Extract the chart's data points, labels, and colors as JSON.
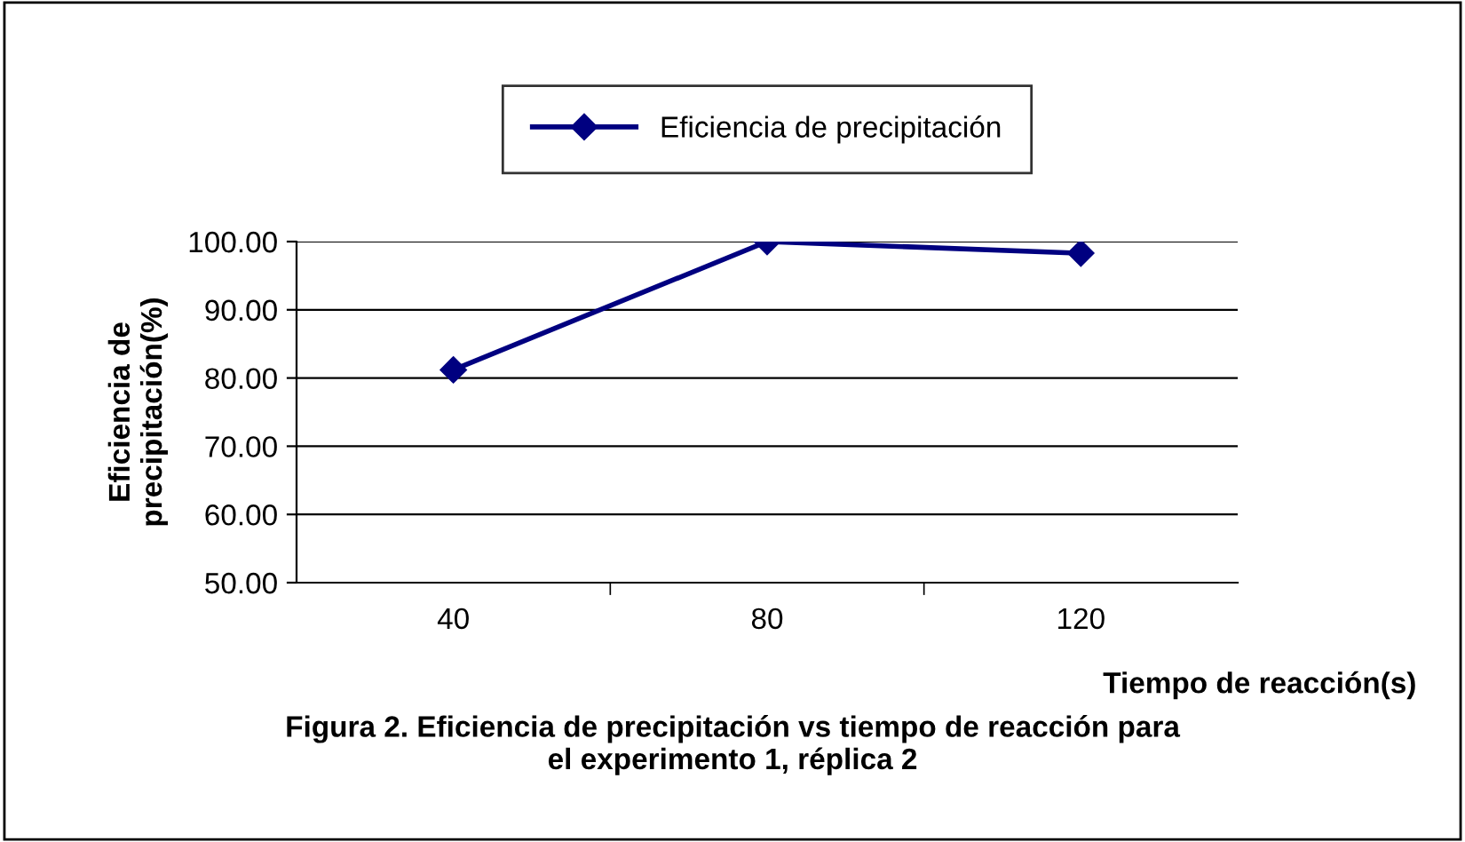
{
  "chart_data": {
    "type": "line",
    "xlabel": "Tiempo de reacción(s)",
    "ylabel": "Eficiencia de\nprecipitación(%)",
    "categories": [
      "40",
      "80",
      "120"
    ],
    "series": [
      {
        "name": "Eficiencia de precipitación",
        "color": "#000080",
        "values": [
          81.2,
          100.0,
          98.3
        ]
      }
    ],
    "ylim": [
      50,
      100
    ],
    "yticks": [
      {
        "value": 50,
        "label": "50.00"
      },
      {
        "value": 60,
        "label": "60.00"
      },
      {
        "value": 70,
        "label": "70.00"
      },
      {
        "value": 80,
        "label": "80.00"
      },
      {
        "value": 90,
        "label": "90.00"
      },
      {
        "value": 100,
        "label": "100.00"
      }
    ],
    "grid": "y",
    "legend": "top",
    "marker": "diamond",
    "line_style": "solid",
    "annotations": [
      "Figura 2. Eficiencia de precipitación vs tiempo de reacción para\nel experimento 1, réplica 2"
    ]
  }
}
